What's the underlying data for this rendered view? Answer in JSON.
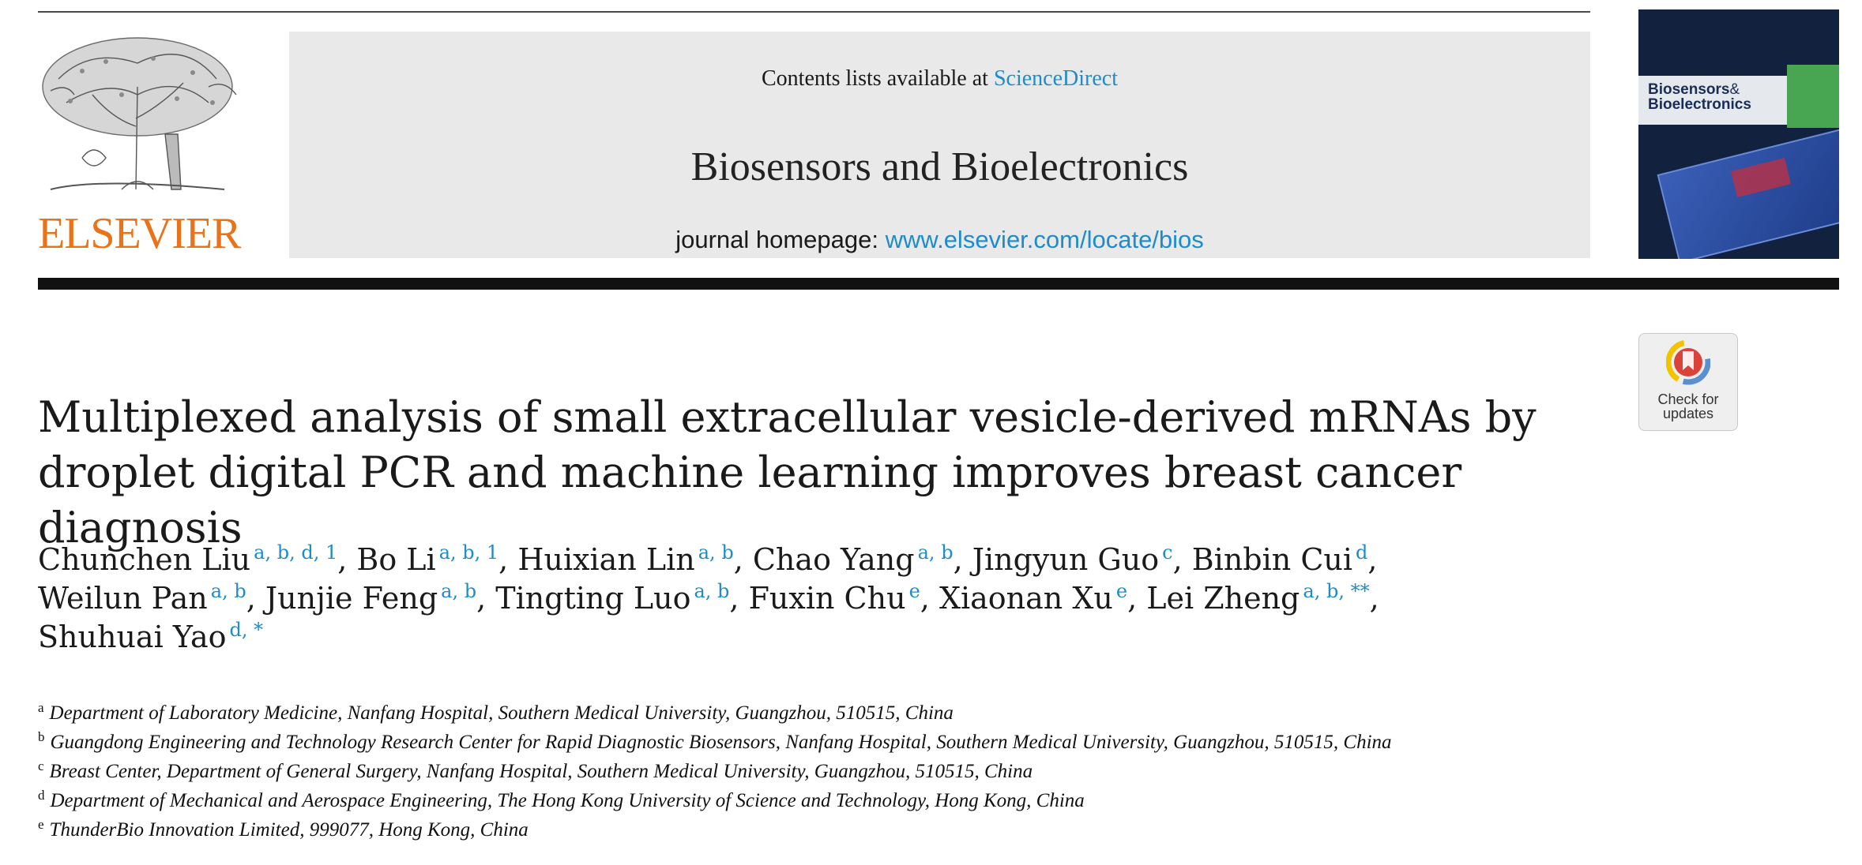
{
  "header": {
    "publisher_logo": "ELSEVIER",
    "contents_prefix": "Contents lists available at ",
    "contents_link": "ScienceDirect",
    "journal_title": "Biosensors and Bioelectronics",
    "homepage_prefix": "journal homepage: ",
    "homepage_link": "www.elsevier.com/locate/bios",
    "cover_title_line1": "Biosensors",
    "cover_title_amp": "&",
    "cover_title_line2": "Bioelectronics"
  },
  "check_updates": {
    "line1": "Check for",
    "line2": "updates"
  },
  "article": {
    "title": "Multiplexed analysis of small extracellular vesicle-derived mRNAs by droplet digital PCR and machine learning improves breast cancer diagnosis",
    "authors": [
      {
        "name": "Chunchen Liu",
        "sup": "a, b, d, 1"
      },
      {
        "name": "Bo Li",
        "sup": "a, b, 1"
      },
      {
        "name": "Huixian Lin",
        "sup": "a, b"
      },
      {
        "name": "Chao Yang",
        "sup": "a, b"
      },
      {
        "name": "Jingyun Guo",
        "sup": "c"
      },
      {
        "name": "Binbin Cui",
        "sup": "d"
      },
      {
        "name": "Weilun Pan",
        "sup": "a, b"
      },
      {
        "name": "Junjie Feng",
        "sup": "a, b"
      },
      {
        "name": "Tingting Luo",
        "sup": "a, b"
      },
      {
        "name": "Fuxin Chu",
        "sup": "e"
      },
      {
        "name": "Xiaonan Xu",
        "sup": "e"
      },
      {
        "name": "Lei Zheng",
        "sup": "a, b, **"
      },
      {
        "name": "Shuhuai Yao",
        "sup": "d, *"
      }
    ],
    "affiliations": [
      {
        "label": "a",
        "text": "Department of Laboratory Medicine, Nanfang Hospital, Southern Medical University, Guangzhou, 510515, China"
      },
      {
        "label": "b",
        "text": "Guangdong Engineering and Technology Research Center for Rapid Diagnostic Biosensors, Nanfang Hospital, Southern Medical University, Guangzhou, 510515, China"
      },
      {
        "label": "c",
        "text": "Breast Center, Department of General Surgery, Nanfang Hospital, Southern Medical University, Guangzhou, 510515, China"
      },
      {
        "label": "d",
        "text": "Department of Mechanical and Aerospace Engineering, The Hong Kong University of Science and Technology, Hong Kong, China"
      },
      {
        "label": "e",
        "text": "ThunderBio Innovation Limited, 999077, Hong Kong, China"
      }
    ]
  },
  "colors": {
    "link": "#1d8cc9",
    "elsevier_orange": "#e8731a",
    "banner_bg": "#e9e9e9"
  }
}
